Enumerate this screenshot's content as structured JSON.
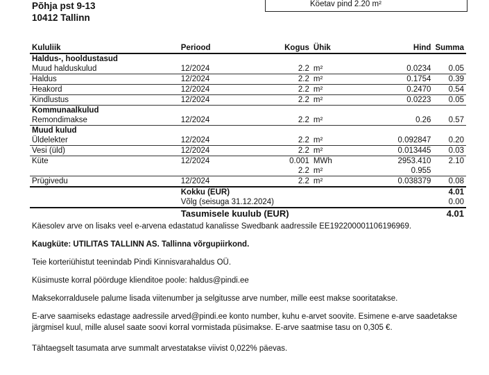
{
  "address": {
    "line1": "Põhja pst 9-13",
    "line2": "10412 Tallinn"
  },
  "info_box": {
    "heated_area": "Köetav pind  2.20 m²"
  },
  "table": {
    "headers": [
      "Kululiik",
      "Periood",
      "Kogus",
      "Ühik",
      "Hind",
      "Summa"
    ],
    "rows": [
      {
        "type": "group",
        "name": "Haldus-, hooldustasud"
      },
      {
        "type": "row",
        "name": "Muud halduskulud",
        "period": "12/2024",
        "qty": "2.2",
        "unit": "m²",
        "price": "0.0234",
        "sum": "0.05"
      },
      {
        "type": "row",
        "name": "Haldus",
        "period": "12/2024",
        "qty": "2.2",
        "unit": "m²",
        "price": "0.1754",
        "sum": "0.39"
      },
      {
        "type": "row",
        "name": "Heakord",
        "period": "12/2024",
        "qty": "2.2",
        "unit": "m²",
        "price": "0.2470",
        "sum": "0.54"
      },
      {
        "type": "row",
        "name": "Kindlustus",
        "period": "12/2024",
        "qty": "2.2",
        "unit": "m²",
        "price": "0.0223",
        "sum": "0.05"
      },
      {
        "type": "group",
        "name": "Kommunaalkulud"
      },
      {
        "type": "row",
        "name": "Remondimakse",
        "period": "12/2024",
        "qty": "2.2",
        "unit": "m²",
        "price": "0.26",
        "sum": "0.57"
      },
      {
        "type": "group",
        "name": "Muud kulud"
      },
      {
        "type": "row",
        "name": "Üldelekter",
        "period": "12/2024",
        "qty": "2.2",
        "unit": "m²",
        "price": "0.092847",
        "sum": "0.20"
      },
      {
        "type": "row",
        "name": "Vesi (üld)",
        "period": "12/2024",
        "qty": "2.2",
        "unit": "m²",
        "price": "0.013445",
        "sum": "0.03"
      },
      {
        "type": "sub",
        "name": "Küte",
        "period": "12/2024",
        "qty": "0.001",
        "unit": "MWh",
        "price": "2953.410",
        "sum": "2.10"
      },
      {
        "type": "row",
        "name": "",
        "period": "",
        "qty": "2.2",
        "unit": "m²",
        "price": "0.955",
        "sum": ""
      },
      {
        "type": "row",
        "name": "Prügivedu",
        "period": "12/2024",
        "qty": "2.2",
        "unit": "m²",
        "price": "0.038379",
        "sum": "0.08"
      }
    ],
    "total_label": "Kokku (EUR)",
    "total": "4.01",
    "debt_label": "Võlg (seisuga 31.12.2024)",
    "debt": "0.00",
    "due_label": "Tasumisele kuulub (EUR)",
    "due": "4.01"
  },
  "notes": {
    "einvoice": "Käesolev arve on lisaks veel e-arvena edastatud kanalisse Swedbank aadressile EE192200001106196969.",
    "heating": "Kaugküte: UTILITAS TALLINN AS. Tallinna võrgupiirkond.",
    "manager": "Teie korteriühistut teenindab Pindi Kinnisvarahaldus OÜ.",
    "contact": "Küsimuste korral pöörduge klienditoe poole: haldus@pindi.ee",
    "reference": "Maksekorraldusele palume lisada viitenumber ja selgitusse arve number, mille eest makse sooritatakse.",
    "einvoice_info": "E-arve saamiseks edastage aadressile arved@pindi.ee konto number, kuhu e-arvet soovite. Esimene e-arve saadetakse järgmisel kuul, mille alusel saate soovi korral vormistada püsimakse. E-arve saatmise tasu on 0,305 €.",
    "penalty": "Tähtaegselt tasumata arve summalt arvestatakse viivist 0,022% päevas."
  }
}
